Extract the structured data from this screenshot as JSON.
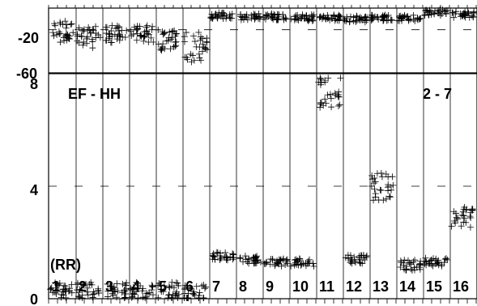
{
  "chart_data": [
    {
      "type": "scatter",
      "panel": "top",
      "yticks": [
        "-20",
        "-60"
      ],
      "ylim": [
        -60,
        0
      ],
      "grid": true,
      "series": [
        {
          "x": [
            1,
            2,
            3,
            4,
            5,
            6
          ],
          "y": [
            -22,
            -27,
            -24,
            -24,
            -30,
            -36
          ],
          "spread": [
            10,
            10,
            8,
            8,
            10,
            14
          ]
        },
        {
          "x": [
            7,
            8,
            9,
            10,
            11,
            12,
            13,
            14,
            15,
            16
          ],
          "y": [
            -7,
            -8,
            -8,
            -9,
            -9,
            -10,
            -9,
            -9,
            -4,
            -6
          ],
          "spread": [
            3,
            3,
            3,
            3,
            3,
            3,
            3,
            3,
            3,
            3
          ]
        }
      ]
    },
    {
      "type": "scatter",
      "panel": "bottom",
      "title_left": "EF - HH",
      "title_right": "2 - 7",
      "annotation": "(RR)",
      "yticks": [
        "8",
        "4",
        "0"
      ],
      "ylim": [
        0,
        8
      ],
      "categories": [
        "1",
        "2",
        "3",
        "4",
        "5",
        "6",
        "7",
        "8",
        "9",
        "10",
        "11",
        "12",
        "13",
        "14",
        "15",
        "16"
      ],
      "grid": true,
      "series": [
        {
          "x": [
            1,
            2,
            3,
            4,
            5,
            6,
            7,
            8,
            9,
            10,
            11,
            12,
            13,
            14,
            15,
            16
          ],
          "y": [
            0.3,
            0.3,
            0.3,
            0.3,
            0.3,
            0.2,
            1.5,
            1.4,
            1.3,
            1.3,
            7.4,
            1.4,
            4.0,
            1.2,
            1.3,
            2.9
          ],
          "spread": [
            0.3,
            0.3,
            0.3,
            0.3,
            0.3,
            0.3,
            0.15,
            0.15,
            0.15,
            0.15,
            0.6,
            0.15,
            0.5,
            0.2,
            0.15,
            0.4
          ]
        }
      ]
    }
  ]
}
